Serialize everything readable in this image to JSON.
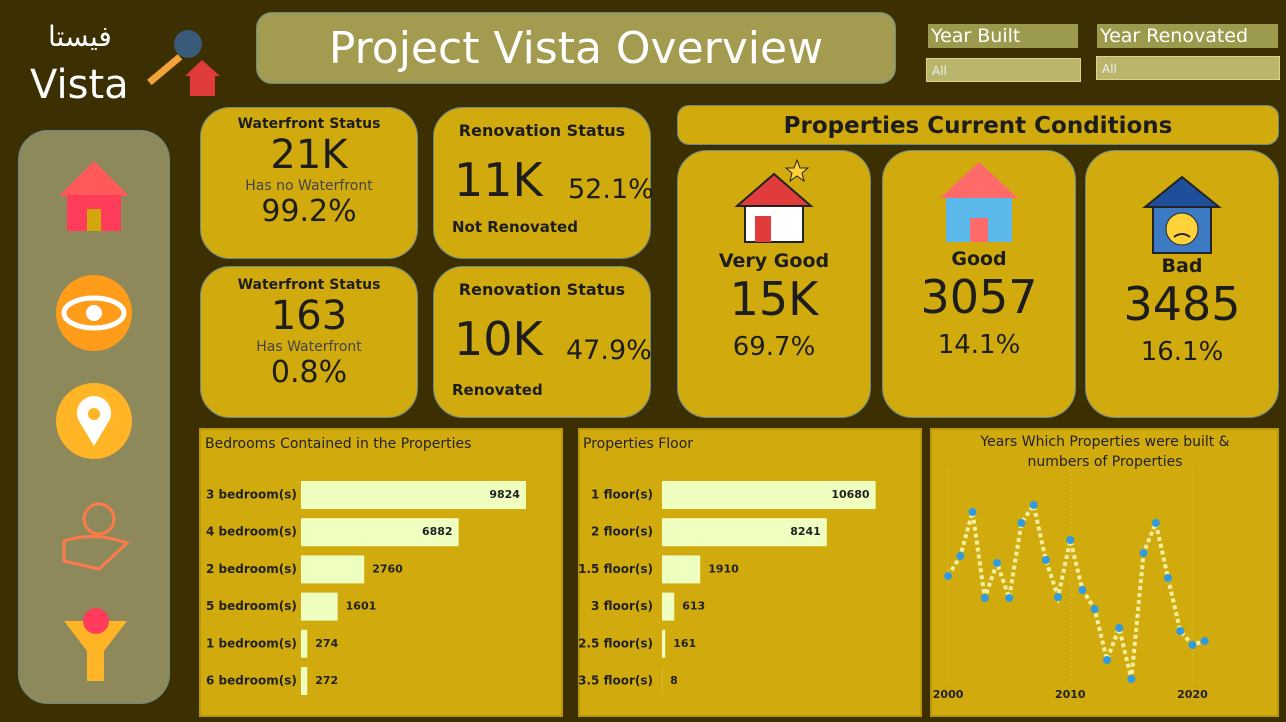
{
  "header": {
    "logo_arabic": "فيستا",
    "logo": "Vista",
    "title": "Project Vista Overview"
  },
  "filters": [
    {
      "label": "Year Built",
      "value": "All"
    },
    {
      "label": "Year Renovated",
      "value": "All"
    }
  ],
  "waterfront": [
    {
      "title": "Waterfront Status",
      "value": "21K",
      "caption": "Has no Waterfront",
      "percent": "99.2%"
    },
    {
      "title": "Waterfront Status",
      "value": "163",
      "caption": "Has Waterfront",
      "percent": "0.8%"
    }
  ],
  "renovation": [
    {
      "title": "Renovation Status",
      "value": "11K",
      "percent": "52.1%",
      "caption": "Not Renovated"
    },
    {
      "title": "Renovation Status",
      "value": "10K",
      "percent": "47.9%",
      "caption": "Renovated"
    }
  ],
  "conditions": {
    "title": "Properties Current Conditions",
    "items": [
      {
        "label": "Very Good",
        "value": "15K",
        "percent": "69.7%"
      },
      {
        "label": "Good",
        "value": "3057",
        "percent": "14.1%"
      },
      {
        "label": "Bad",
        "value": "3485",
        "percent": "16.1%"
      }
    ]
  },
  "chart_data": [
    {
      "type": "hbar",
      "title": "Bedrooms Contained in the Properties",
      "categories": [
        "3 bedroom(s)",
        "4 bedroom(s)",
        "2 bedroom(s)",
        "5 bedroom(s)",
        "1 bedroom(s)",
        "6 bedroom(s)"
      ],
      "values": [
        9824,
        6882,
        2760,
        1601,
        274,
        272
      ],
      "color": "#eeffc0",
      "xlim": [
        0,
        10000
      ]
    },
    {
      "type": "hbar",
      "title": "Properties Floor",
      "categories": [
        "1 floor(s)",
        "2 floor(s)",
        "1.5 floor(s)",
        "3 floor(s)",
        "2.5 floor(s)",
        "3.5 floor(s)"
      ],
      "values": [
        10680,
        8241,
        1910,
        613,
        161,
        8
      ],
      "color": "#eeffc0",
      "xlim": [
        0,
        11000
      ]
    },
    {
      "type": "line",
      "title": "Years Which Properties were built & numbers of Properties",
      "x": [
        2000,
        2001,
        2002,
        2003,
        2004,
        2005,
        2006,
        2007,
        2008,
        2009,
        2010,
        2011,
        2012,
        2013,
        2014,
        2015,
        2016,
        2017,
        2018,
        2019,
        2020,
        2021
      ],
      "values": [
        124,
        144,
        188,
        102,
        137,
        102,
        177,
        195,
        140,
        103,
        160,
        110,
        91,
        40,
        72,
        21,
        147,
        177,
        122,
        69,
        55,
        59
      ],
      "color": "#f3efa0",
      "marker_color": "#2f9be0",
      "xlim": [
        1999.5,
        2022.5
      ],
      "ylim": [
        0,
        220
      ],
      "xticks": [
        2000,
        2010,
        2020
      ],
      "grid": true
    }
  ]
}
